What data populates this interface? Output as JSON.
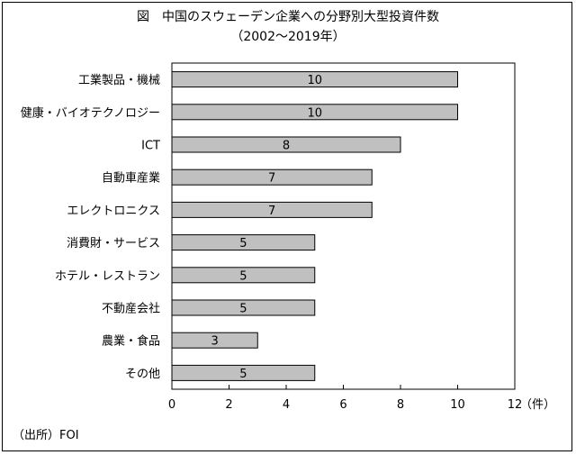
{
  "chart_data": {
    "type": "bar",
    "orientation": "horizontal",
    "title": "図　中国のスウェーデン企業への分野別大型投資件数",
    "subtitle": "（2002～2019年）",
    "categories": [
      "工業製品・機械",
      "健康・バイオテクノロジー",
      "ICT",
      "自動車産業",
      "エレクトロニクス",
      "消費財・サービス",
      "ホテル・レストラン",
      "不動産会社",
      "農業・食品",
      "その他"
    ],
    "values": [
      10,
      10,
      8,
      7,
      7,
      5,
      5,
      5,
      3,
      5
    ],
    "data_labels": [
      "10",
      "10",
      "8",
      "7",
      "7",
      "5",
      "5",
      "5",
      "3",
      "5"
    ],
    "x_ticks": [
      "0",
      "2",
      "4",
      "6",
      "8",
      "10",
      "12"
    ],
    "xlim": [
      0,
      12
    ],
    "unit_label": "（件）",
    "grid": false,
    "bar_color": "#c0c0c0",
    "source": "（出所）FOI"
  }
}
